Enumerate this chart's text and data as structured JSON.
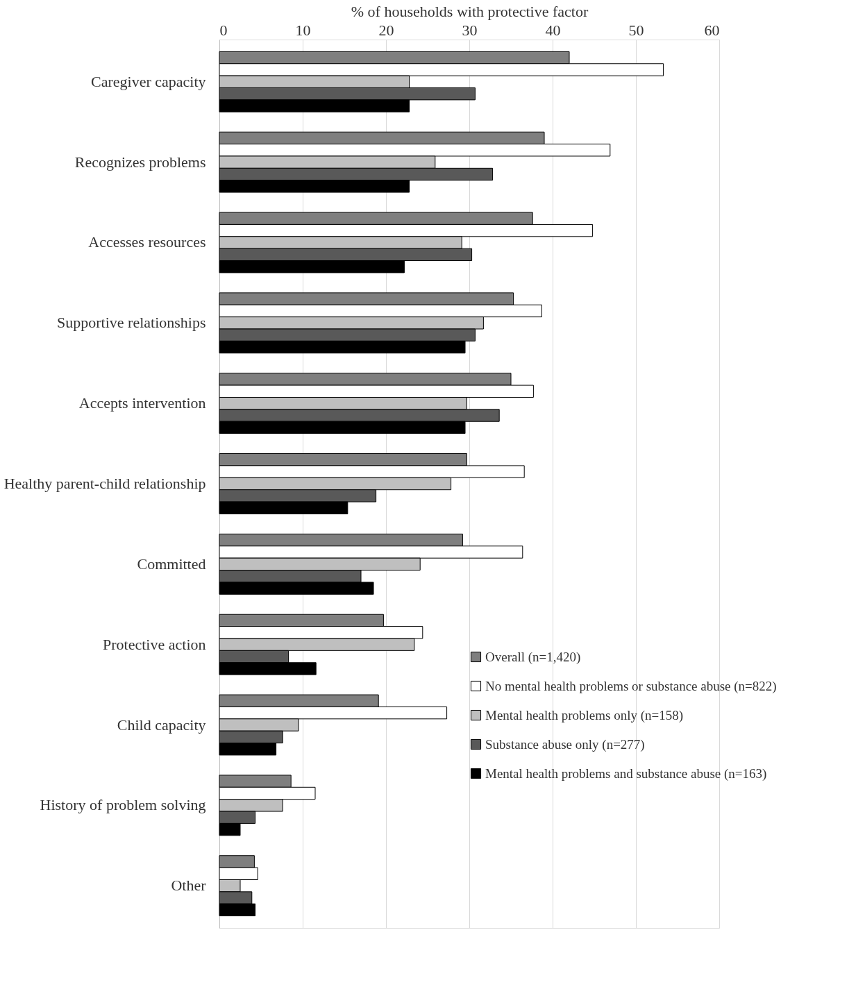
{
  "chart_data": {
    "type": "bar",
    "orientation": "horizontal",
    "xlabel": "% of households with protective factor",
    "categories": [
      "Caregiver capacity",
      "Recognizes problems",
      "Accesses resources",
      "Supportive relationships",
      "Accepts intervention",
      "Healthy parent-child relationship",
      "Committed",
      "Protective action",
      "Child capacity",
      "History of problem solving",
      "Other"
    ],
    "series": [
      {
        "name": "Overall (n=1,420)",
        "color": "#7f7f7f",
        "values": [
          42.0,
          39.0,
          37.6,
          35.3,
          35.0,
          29.7,
          29.2,
          19.7,
          19.1,
          8.6,
          4.2
        ]
      },
      {
        "name": "No mental health problems or substance abuse (n=822)",
        "color": "#ffffff",
        "values": [
          53.3,
          46.9,
          44.8,
          38.7,
          37.7,
          36.6,
          36.4,
          24.4,
          27.3,
          11.5,
          4.6
        ]
      },
      {
        "name": "Mental health problems only (n=158)",
        "color": "#bfbfbf",
        "values": [
          22.8,
          25.9,
          29.1,
          31.7,
          29.7,
          27.8,
          24.1,
          23.4,
          9.5,
          7.6,
          2.5
        ]
      },
      {
        "name": "Substance abuse only (n=277)",
        "color": "#595959",
        "values": [
          30.7,
          32.8,
          30.3,
          30.7,
          33.6,
          18.8,
          17.0,
          8.3,
          7.6,
          4.3,
          3.9
        ]
      },
      {
        "name": "Mental health problems and substance abuse (n=163)",
        "color": "#000000",
        "values": [
          22.8,
          22.8,
          22.2,
          29.5,
          29.5,
          15.4,
          18.5,
          11.6,
          6.8,
          2.5,
          4.3
        ]
      }
    ],
    "xlim": [
      0,
      60
    ],
    "xticks": [
      0,
      10,
      20,
      30,
      40,
      50,
      60
    ],
    "grid": "x",
    "legend": "bottom right"
  }
}
